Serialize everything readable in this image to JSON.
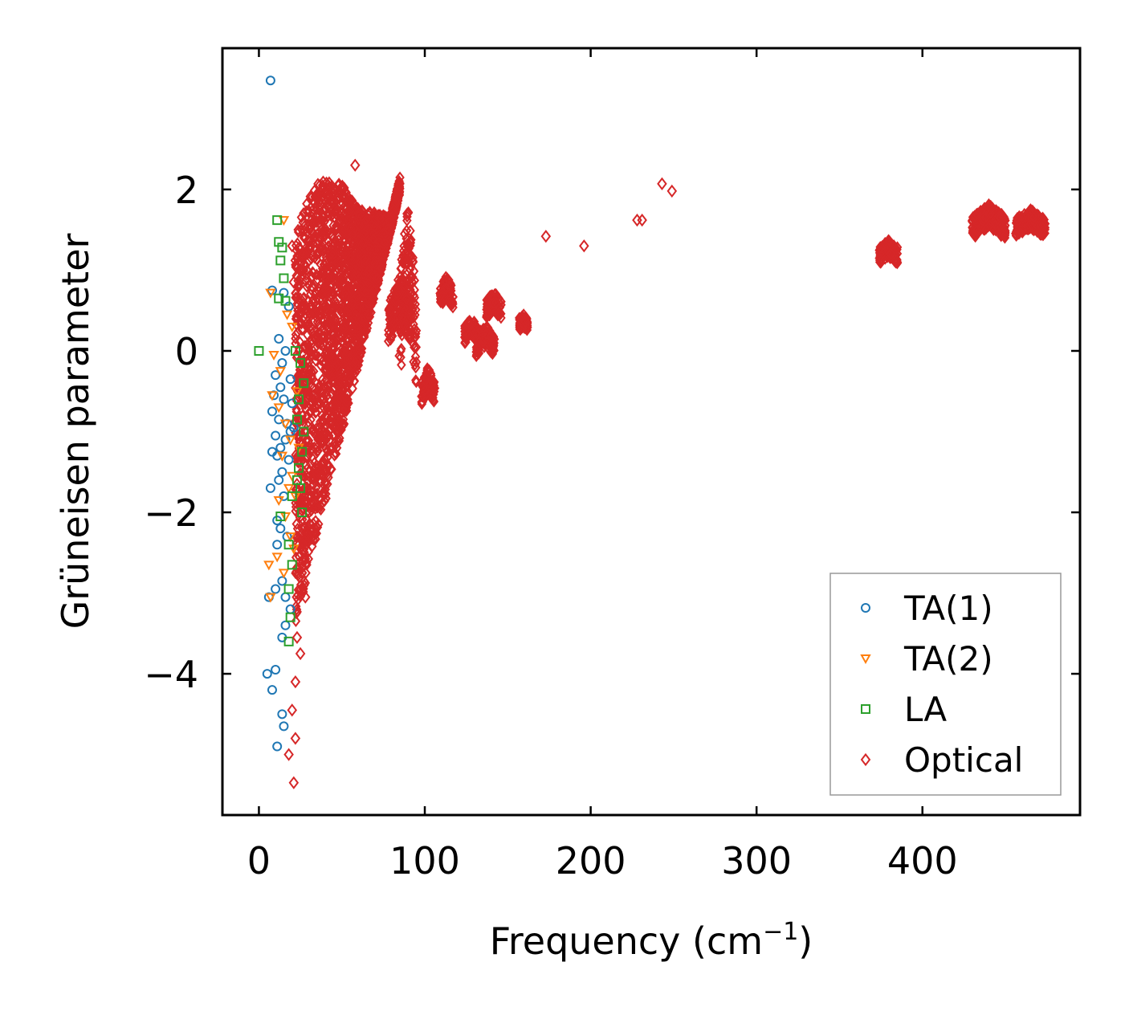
{
  "chart_data": {
    "type": "scatter",
    "title": "",
    "xlabel": "Frequency (cm",
    "xlabel_sup": "−1",
    "xlabel_close": ")",
    "ylabel": "Grüneisen parameter",
    "xlim": [
      -22,
      495
    ],
    "ylim": [
      -5.75,
      3.75
    ],
    "x_ticks": [
      0,
      100,
      200,
      300,
      400
    ],
    "x_tick_labels": [
      "0",
      "100",
      "200",
      "300",
      "400"
    ],
    "y_ticks": [
      2,
      0,
      -2,
      -4
    ],
    "y_tick_labels": [
      "2",
      "0",
      "−2",
      "−4"
    ],
    "legend_position": "lower-right",
    "series": [
      {
        "name": "TA(1)",
        "marker": "circle",
        "color": "#1f77b4",
        "points": [
          [
            7,
            3.35
          ],
          [
            8,
            0.75
          ],
          [
            12,
            0.15
          ],
          [
            15,
            0.72
          ],
          [
            18,
            0.55
          ],
          [
            16,
            0.0
          ],
          [
            14,
            -0.15
          ],
          [
            10,
            -0.3
          ],
          [
            13,
            -0.45
          ],
          [
            9,
            -0.55
          ],
          [
            15,
            -0.6
          ],
          [
            8,
            -0.75
          ],
          [
            12,
            -0.85
          ],
          [
            17,
            -0.9
          ],
          [
            19,
            -1.0
          ],
          [
            10,
            -1.05
          ],
          [
            16,
            -1.1
          ],
          [
            13,
            -1.2
          ],
          [
            8,
            -1.25
          ],
          [
            11,
            -1.3
          ],
          [
            18,
            -1.35
          ],
          [
            14,
            -1.5
          ],
          [
            12,
            -1.6
          ],
          [
            7,
            -1.7
          ],
          [
            15,
            -1.8
          ],
          [
            11,
            -2.1
          ],
          [
            13,
            -2.2
          ],
          [
            17,
            -2.3
          ],
          [
            11,
            -2.4
          ],
          [
            14,
            -2.85
          ],
          [
            10,
            -2.95
          ],
          [
            6,
            -3.05
          ],
          [
            16,
            -3.05
          ],
          [
            19,
            -3.2
          ],
          [
            16,
            -3.4
          ],
          [
            14,
            -3.55
          ],
          [
            10,
            -3.95
          ],
          [
            5,
            -4.0
          ],
          [
            8,
            -4.2
          ],
          [
            14,
            -4.5
          ],
          [
            15,
            -4.65
          ],
          [
            11,
            -4.9
          ],
          [
            19,
            -0.35
          ],
          [
            20,
            -0.65
          ],
          [
            21,
            -0.95
          ]
        ]
      },
      {
        "name": "TA(2)",
        "marker": "triangle-down",
        "color": "#ff7f0e",
        "points": [
          [
            15,
            1.62
          ],
          [
            7,
            0.72
          ],
          [
            17,
            0.45
          ],
          [
            20,
            0.3
          ],
          [
            9,
            -0.05
          ],
          [
            13,
            -0.25
          ],
          [
            8,
            -0.55
          ],
          [
            12,
            -0.7
          ],
          [
            16,
            -0.9
          ],
          [
            19,
            -1.1
          ],
          [
            14,
            -1.3
          ],
          [
            20,
            -1.55
          ],
          [
            12,
            -1.85
          ],
          [
            16,
            -2.05
          ],
          [
            19,
            -2.3
          ],
          [
            11,
            -2.55
          ],
          [
            6,
            -2.65
          ],
          [
            15,
            -2.75
          ],
          [
            7,
            -3.05
          ],
          [
            22,
            -1.8
          ],
          [
            24,
            -1.2
          ],
          [
            23,
            -0.5
          ],
          [
            18,
            -1.7
          ],
          [
            21,
            -2.45
          ]
        ]
      },
      {
        "name": "LA",
        "marker": "square",
        "color": "#2ca02c",
        "points": [
          [
            11,
            1.62
          ],
          [
            12,
            1.35
          ],
          [
            14,
            1.28
          ],
          [
            13,
            1.12
          ],
          [
            15,
            0.9
          ],
          [
            12,
            0.65
          ],
          [
            16,
            0.62
          ],
          [
            0,
            0.0
          ],
          [
            22,
            0.0
          ],
          [
            25,
            -0.15
          ],
          [
            27,
            -0.4
          ],
          [
            24,
            -0.6
          ],
          [
            27,
            -1.0
          ],
          [
            26,
            -1.25
          ],
          [
            24,
            -1.45
          ],
          [
            23,
            -1.6
          ],
          [
            20,
            -1.8
          ],
          [
            13,
            -2.05
          ],
          [
            26,
            -2.0
          ],
          [
            18,
            -2.4
          ],
          [
            20,
            -2.65
          ],
          [
            18,
            -2.95
          ],
          [
            19,
            -3.3
          ],
          [
            18,
            -3.6
          ],
          [
            23,
            -0.85
          ],
          [
            25,
            -1.7
          ]
        ]
      },
      {
        "name": "Optical",
        "marker": "diamond",
        "color": "#d62728",
        "points": [
          [
            20,
            1.3
          ],
          [
            22,
            1.12
          ],
          [
            21,
            0.85
          ],
          [
            22,
            -4.1
          ],
          [
            20,
            -4.45
          ],
          [
            22,
            -4.8
          ],
          [
            18,
            -5.0
          ],
          [
            21,
            -5.35
          ],
          [
            23,
            -3.55
          ],
          [
            25,
            -3.75
          ],
          [
            28,
            -3.05
          ],
          [
            26,
            -2.75
          ],
          [
            30,
            -2.35
          ],
          [
            34,
            -1.95
          ],
          [
            36,
            -1.7
          ],
          [
            39,
            -1.4
          ],
          [
            42,
            -1.05
          ],
          [
            45,
            -0.75
          ],
          [
            48,
            -0.45
          ],
          [
            55,
            -0.1
          ],
          [
            35,
            1.6
          ],
          [
            45,
            1.85
          ],
          [
            58,
            2.3
          ],
          [
            65,
            0.55
          ],
          [
            88,
            1.45
          ],
          [
            173,
            1.42
          ],
          [
            196,
            1.3
          ],
          [
            228,
            1.62
          ],
          [
            231,
            1.62
          ],
          [
            243,
            2.07
          ],
          [
            249,
            1.98
          ],
          [
            375,
            1.28
          ],
          [
            381,
            1.2
          ],
          [
            432,
            1.67
          ],
          [
            447,
            1.55
          ],
          [
            458,
            1.62
          ],
          [
            472,
            1.53
          ]
        ]
      }
    ],
    "dense_regions": [
      {
        "series": "Optical",
        "x": [
          22,
          85
        ],
        "y_low": [
          -3.4,
          1.95
        ],
        "y_high": [
          1.45,
          2.05
        ],
        "description": "main optical band"
      },
      {
        "series": "Optical",
        "x": [
          84,
          95
        ],
        "y_low": [
          0.05,
          1.25
        ],
        "description": "branch near 90"
      },
      {
        "series": "Optical",
        "x": [
          78,
          92
        ],
        "y_low": [
          0.3,
          0.7
        ],
        "description": "branch near 85"
      },
      {
        "series": "Optical",
        "x": [
          98,
          106
        ],
        "y_low": [
          -0.55,
          -0.35
        ],
        "description": "branch near 100"
      },
      {
        "series": "Optical",
        "x": [
          109,
          117
        ],
        "y_low": [
          0.65,
          0.8
        ],
        "description": "branch near 112"
      },
      {
        "series": "Optical",
        "x": [
          124,
          132
        ],
        "y_low": [
          0.2,
          0.3
        ],
        "description": "branch near 128"
      },
      {
        "series": "Optical",
        "x": [
          131,
          142
        ],
        "y_low": [
          0.05,
          0.2
        ],
        "description": "branch near 137"
      },
      {
        "series": "Optical",
        "x": [
          137,
          146
        ],
        "y_low": [
          0.5,
          0.62
        ],
        "description": "branch near 141"
      },
      {
        "series": "Optical",
        "x": [
          157,
          162
        ],
        "y_low": [
          0.33,
          0.38
        ],
        "description": "branch near 160"
      },
      {
        "series": "Optical",
        "x": [
          374,
          385
        ],
        "y_low": [
          1.18,
          1.27
        ],
        "description": "branch near 380"
      },
      {
        "series": "Optical",
        "x": [
          430,
          450
        ],
        "y_low": [
          1.52,
          1.68
        ],
        "description": "branch near 440"
      },
      {
        "series": "Optical",
        "x": [
          456,
          474
        ],
        "y_low": [
          1.52,
          1.64
        ],
        "description": "branch near 465"
      }
    ]
  }
}
